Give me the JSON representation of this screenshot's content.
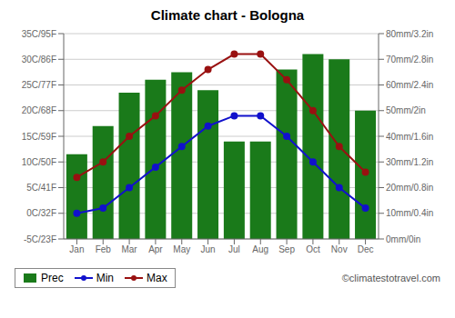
{
  "chart_data": {
    "type": "bar",
    "title": "Climate chart - Bologna",
    "categories": [
      "Jan",
      "Feb",
      "Mar",
      "Apr",
      "May",
      "Jun",
      "Jul",
      "Aug",
      "Sep",
      "Oct",
      "Nov",
      "Dec"
    ],
    "series": [
      {
        "name": "Prec",
        "type": "bar",
        "axis": "y2",
        "color": "#1a7a1a",
        "values": [
          33,
          44,
          57,
          62,
          65,
          58,
          38,
          38,
          66,
          72,
          70,
          50
        ]
      },
      {
        "name": "Min",
        "type": "line",
        "marker": "circle",
        "color": "#1111cc",
        "values": [
          0,
          1,
          5,
          9,
          13,
          17,
          19,
          19,
          15,
          10,
          5,
          1
        ]
      },
      {
        "name": "Max",
        "type": "line",
        "marker": "circle",
        "color": "#991111",
        "values": [
          7,
          10,
          15,
          19,
          24,
          28,
          31,
          31,
          26,
          20,
          13,
          8
        ]
      }
    ],
    "ylim": [
      -5,
      35
    ],
    "yticks": [
      {
        "value": -5,
        "label": "-5C/23F"
      },
      {
        "value": 0,
        "label": "0C/32F"
      },
      {
        "value": 5,
        "label": "5C/41F"
      },
      {
        "value": 10,
        "label": "10C/50F"
      },
      {
        "value": 15,
        "label": "15C/59F"
      },
      {
        "value": 20,
        "label": "20C/68F"
      },
      {
        "value": 25,
        "label": "25C/77F"
      },
      {
        "value": 30,
        "label": "30C/86F"
      },
      {
        "value": 35,
        "label": "35C/95F"
      }
    ],
    "y2lim": [
      0,
      80
    ],
    "y2ticks": [
      {
        "value": 0,
        "label": "0mm/0in"
      },
      {
        "value": 10,
        "label": "10mm/0.4in"
      },
      {
        "value": 20,
        "label": "20mm/0.8in"
      },
      {
        "value": 30,
        "label": "30mm/1.2in"
      },
      {
        "value": 40,
        "label": "40mm/1.6in"
      },
      {
        "value": 50,
        "label": "50mm/2in"
      },
      {
        "value": 60,
        "label": "60mm/2.4in"
      },
      {
        "value": 70,
        "label": "70mm/2.8in"
      },
      {
        "value": 80,
        "label": "80mm/3.2in"
      }
    ],
    "grid": true,
    "legend": "lower left",
    "annotations": [
      "©climatestotravel.com"
    ]
  }
}
